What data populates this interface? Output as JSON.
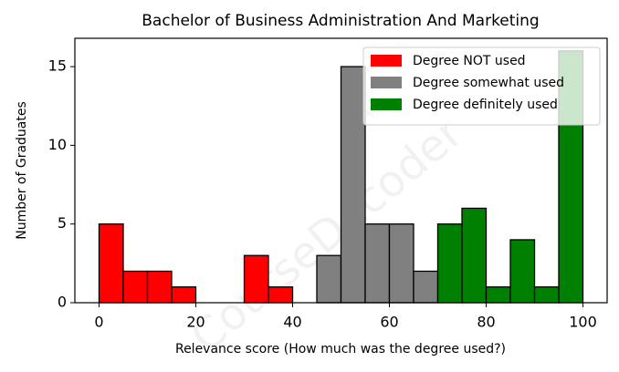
{
  "chart_data": {
    "type": "histogram",
    "title": "Bachelor of Business Administration And Marketing",
    "x_label": "Relevance score (How much was the degree used?)",
    "y_label": "Number of Graduates",
    "watermark": "CourseDecoder",
    "series": [
      {
        "name": "Degree NOT used",
        "color": "#ff0000",
        "bins": [
          0,
          5,
          10,
          15,
          20,
          25,
          30,
          35,
          40,
          45
        ],
        "values": [
          5,
          2,
          2,
          1,
          0,
          0,
          3,
          1,
          0
        ]
      },
      {
        "name": "Degree somewhat used",
        "color": "#808080",
        "bins": [
          45,
          50,
          55,
          60,
          65,
          70
        ],
        "values": [
          3,
          15,
          5,
          5,
          2
        ]
      },
      {
        "name": "Degree definitely used",
        "color": "#008000",
        "bins": [
          70,
          75,
          80,
          85,
          90,
          95,
          100
        ],
        "values": [
          5,
          6,
          1,
          4,
          1,
          16
        ]
      }
    ],
    "xlim": [
      -5,
      105
    ],
    "xticks": [
      0,
      20,
      40,
      60,
      80,
      100
    ],
    "ylim": [
      0,
      16.8
    ],
    "yticks": [
      0,
      5,
      10,
      15
    ],
    "legend": "upper right"
  }
}
